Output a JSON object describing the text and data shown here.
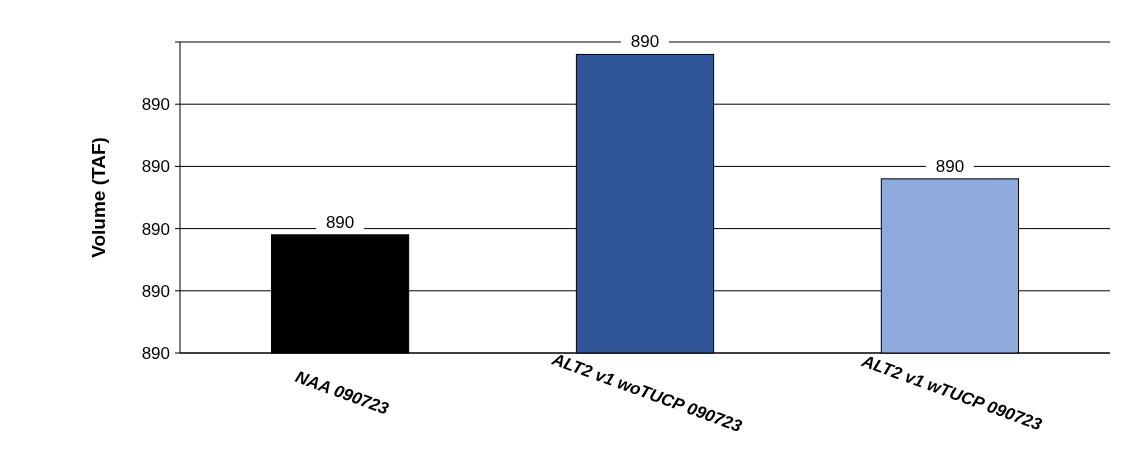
{
  "chart_data": {
    "type": "bar",
    "ylabel": "Volume (TAF)",
    "categories": [
      "NAA 090723",
      "ALT2 v1 woTUCP 090723",
      "ALT2 v1 wTUCP 090723"
    ],
    "values": [
      889.79,
      890.08,
      889.88
    ],
    "colors": [
      "#000000",
      "#2f5597",
      "#8faadc"
    ],
    "value_labels": [
      "890",
      "890",
      "890"
    ],
    "ylim": [
      889.6,
      890.1
    ],
    "yticks": [
      {
        "value": 889.6,
        "label": "890"
      },
      {
        "value": 889.7,
        "label": "890"
      },
      {
        "value": 889.8,
        "label": "890"
      },
      {
        "value": 889.9,
        "label": "890"
      },
      {
        "value": 890.0,
        "label": "890"
      },
      {
        "value": 890.1,
        "label": null
      }
    ],
    "grid": "y"
  }
}
